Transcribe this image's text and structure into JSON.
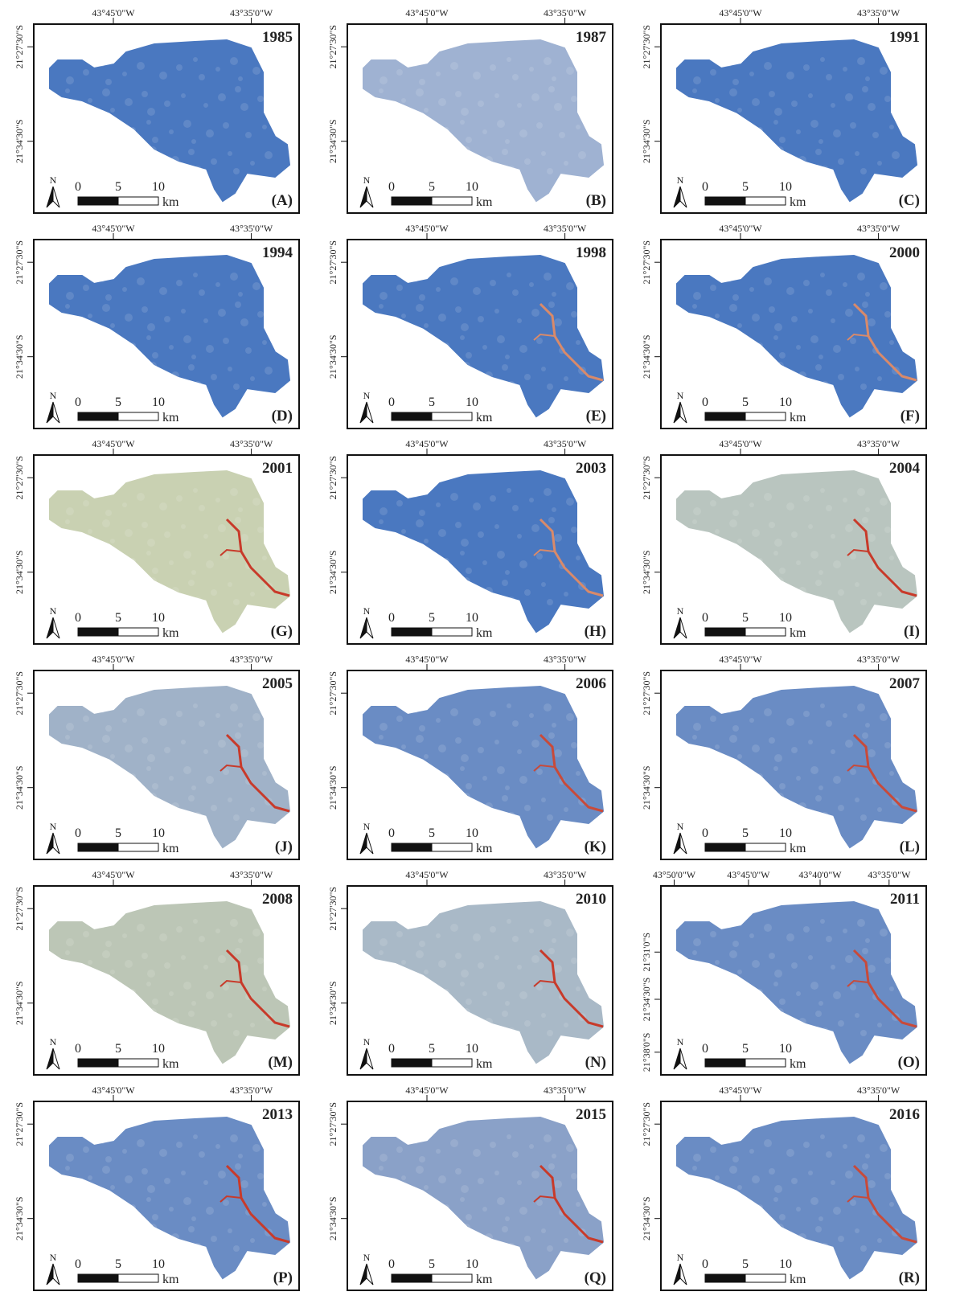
{
  "panels": [
    {
      "year": "1985",
      "letter": "(A)",
      "x_labels": [
        "43°45'0\"W",
        "43°35'0\"W"
      ],
      "y_labels": [
        "21°27'30\"S",
        "21°34'30\"S"
      ],
      "scale": [
        "0",
        "5",
        "10"
      ],
      "unit": "km",
      "north": "N"
    },
    {
      "year": "1987",
      "letter": "(B)",
      "x_labels": [
        "43°45'0\"W",
        "43°35'0\"W"
      ],
      "y_labels": [
        "21°27'30\"S",
        "21°34'30\"S"
      ],
      "scale": [
        "0",
        "5",
        "10"
      ],
      "unit": "km",
      "north": "N"
    },
    {
      "year": "1991",
      "letter": "(C)",
      "x_labels": [
        "43°45'0\"W",
        "43°35'0\"W"
      ],
      "y_labels": [
        "21°27'30\"S",
        "21°34'30\"S"
      ],
      "scale": [
        "0",
        "5",
        "10"
      ],
      "unit": "km",
      "north": "N"
    },
    {
      "year": "1994",
      "letter": "(D)",
      "x_labels": [
        "43°45'0\"W",
        "43°35'0\"W"
      ],
      "y_labels": [
        "21°27'30\"S",
        "21°34'30\"S"
      ],
      "scale": [
        "0",
        "5",
        "10"
      ],
      "unit": "km",
      "north": "N"
    },
    {
      "year": "1998",
      "letter": "(E)",
      "x_labels": [
        "43°45'0\"W",
        "43°35'0\"W"
      ],
      "y_labels": [
        "21°27'30\"S",
        "21°34'30\"S"
      ],
      "scale": [
        "0",
        "5",
        "10"
      ],
      "unit": "km",
      "north": "N"
    },
    {
      "year": "2000",
      "letter": "(F)",
      "x_labels": [
        "43°45'0\"W",
        "43°35'0\"W"
      ],
      "y_labels": [
        "21°27'30\"S",
        "21°34'30\"S"
      ],
      "scale": [
        "0",
        "5",
        "10"
      ],
      "unit": "km",
      "north": "N"
    },
    {
      "year": "2001",
      "letter": "(G)",
      "x_labels": [
        "43°45'0\"W",
        "43°35'0\"W"
      ],
      "y_labels": [
        "21°27'30\"S",
        "21°34'30\"S"
      ],
      "scale": [
        "0",
        "5",
        "10"
      ],
      "unit": "km",
      "north": "N"
    },
    {
      "year": "2003",
      "letter": "(H)",
      "x_labels": [
        "43°45'0\"W",
        "43°35'0\"W"
      ],
      "y_labels": [
        "21°27'30\"S",
        "21°34'30\"S"
      ],
      "scale": [
        "0",
        "5",
        "10"
      ],
      "unit": "km",
      "north": "N"
    },
    {
      "year": "2004",
      "letter": "(I)",
      "x_labels": [
        "43°45'0\"W",
        "43°35'0\"W"
      ],
      "y_labels": [
        "21°27'30\"S",
        "21°34'30\"S"
      ],
      "scale": [
        "0",
        "5",
        "10"
      ],
      "unit": "km",
      "north": "N"
    },
    {
      "year": "2005",
      "letter": "(J)",
      "x_labels": [
        "43°45'0\"W",
        "43°35'0\"W"
      ],
      "y_labels": [
        "21°27'30\"S",
        "21°34'30\"S"
      ],
      "scale": [
        "0",
        "5",
        "10"
      ],
      "unit": "km",
      "north": "N"
    },
    {
      "year": "2006",
      "letter": "(K)",
      "x_labels": [
        "43°45'0\"W",
        "43°35'0\"W"
      ],
      "y_labels": [
        "21°27'30\"S",
        "21°34'30\"S"
      ],
      "scale": [
        "0",
        "5",
        "10"
      ],
      "unit": "km",
      "north": "N"
    },
    {
      "year": "2007",
      "letter": "(L)",
      "x_labels": [
        "43°45'0\"W",
        "43°35'0\"W"
      ],
      "y_labels": [
        "21°27'30\"S",
        "21°34'30\"S"
      ],
      "scale": [
        "0",
        "5",
        "10"
      ],
      "unit": "km",
      "north": "N"
    },
    {
      "year": "2008",
      "letter": "(M)",
      "x_labels": [
        "43°45'0\"W",
        "43°35'0\"W"
      ],
      "y_labels": [
        "21°27'30\"S",
        "21°34'30\"S"
      ],
      "scale": [
        "0",
        "5",
        "10"
      ],
      "unit": "km",
      "north": "N"
    },
    {
      "year": "2010",
      "letter": "(N)",
      "x_labels": [
        "43°45'0\"W",
        "43°35'0\"W"
      ],
      "y_labels": [
        "21°27'30\"S",
        "21°34'30\"S"
      ],
      "scale": [
        "0",
        "5",
        "10"
      ],
      "unit": "km",
      "north": "N"
    },
    {
      "year": "2011",
      "letter": "(O)",
      "x_labels": [
        "43°50'0\"W",
        "43°45'0\"W",
        "43°40'0\"W",
        "43°35'0\"W"
      ],
      "y_labels": [
        "21°31'0\"S",
        "21°34'30\"S",
        "21°38'0\"S"
      ],
      "scale": [
        "0",
        "5",
        "10"
      ],
      "unit": "km",
      "north": "N"
    },
    {
      "year": "2013",
      "letter": "(P)",
      "x_labels": [
        "43°45'0\"W",
        "43°35'0\"W"
      ],
      "y_labels": [
        "21°27'30\"S",
        "21°34'30\"S"
      ],
      "scale": [
        "0",
        "5",
        "10"
      ],
      "unit": "km",
      "north": "N"
    },
    {
      "year": "2015",
      "letter": "(Q)",
      "x_labels": [
        "43°45'0\"W",
        "43°35'0\"W"
      ],
      "y_labels": [
        "21°27'30\"S",
        "21°34'30\"S"
      ],
      "scale": [
        "0",
        "5",
        "10"
      ],
      "unit": "km",
      "north": "N"
    },
    {
      "year": "2016",
      "letter": "(R)",
      "x_labels": [
        "43°45'0\"W",
        "43°35'0\"W"
      ],
      "y_labels": [
        "21°27'30\"S",
        "21°34'30\"S"
      ],
      "scale": [
        "0",
        "5",
        "10"
      ],
      "unit": "km",
      "north": "N"
    }
  ]
}
